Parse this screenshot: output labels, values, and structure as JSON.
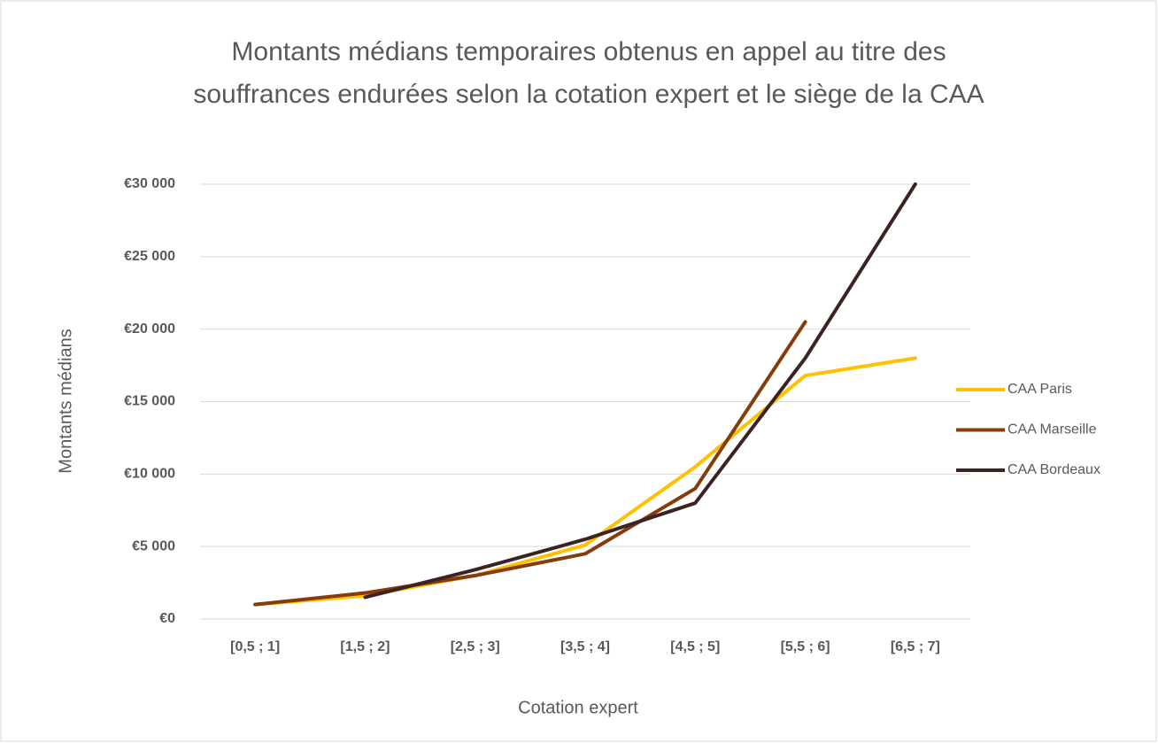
{
  "chart_data": {
    "type": "line",
    "title": [
      "Montants médians temporaires obtenus en appel au titre des",
      "souffrances endurées selon la cotation expert et le siège de la CAA"
    ],
    "xlabel": "Cotation expert",
    "ylabel": "Montants médians",
    "categories": [
      "[0,5 ; 1]",
      "[1,5 ; 2]",
      "[2,5 ; 3]",
      "[3,5 ; 4]",
      "[4,5 ; 5]",
      "[5,5 ; 6]",
      "[6,5 ; 7]"
    ],
    "series": [
      {
        "name": "CAA Paris",
        "color": "#ffc000",
        "values": [
          1000,
          1600,
          3000,
          5100,
          10500,
          16800,
          18000
        ]
      },
      {
        "name": "CAA Marseille",
        "color": "#843c0c",
        "values": [
          1000,
          1800,
          3000,
          4500,
          9000,
          20500,
          null
        ]
      },
      {
        "name": "CAA Bordeaux",
        "color": "#3b2322",
        "values": [
          null,
          1500,
          3400,
          5500,
          8000,
          18000,
          30000
        ]
      }
    ],
    "ylim": [
      0,
      30000
    ],
    "yticks": [
      {
        "value": 0,
        "label": "€0"
      },
      {
        "value": 5000,
        "label": "€5 000"
      },
      {
        "value": 10000,
        "label": "€10 000"
      },
      {
        "value": 15000,
        "label": "€15 000"
      },
      {
        "value": 20000,
        "label": "€20 000"
      },
      {
        "value": 25000,
        "label": "€25 000"
      },
      {
        "value": 30000,
        "label": "€30 000"
      }
    ],
    "grid": true,
    "legend": "right"
  }
}
